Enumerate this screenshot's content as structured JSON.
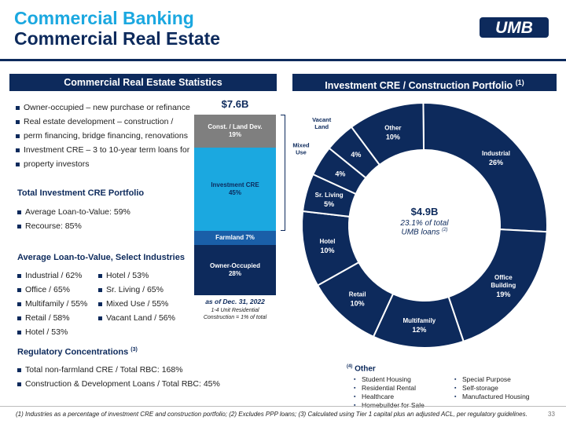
{
  "header": {
    "title_line1": "Commercial Banking",
    "title_line2": "Commercial Real Estate",
    "logo_text": "UMB"
  },
  "left": {
    "header": "Commercial Real Estate Statistics",
    "intro_bullets": [
      "Owner-occupied – new purchase or refinance",
      "Real estate development – construction /",
      "perm financing, bridge financing, renovations",
      "Investment CRE – 3 to 10-year term loans for",
      "property investors"
    ],
    "portfolio": {
      "heading": "Total Investment CRE Portfolio",
      "items": [
        "Average Loan-to-Value: 59%",
        "Recourse: 85%"
      ]
    },
    "ltv": {
      "heading": "Average Loan-to-Value, Select Industries",
      "col1": [
        "Industrial / 62%",
        "Office / 65%",
        "Multifamily / 55%",
        "Retail / 58%",
        "Hotel / 53%"
      ],
      "col2": [
        "Hotel / 53%",
        "Sr. Living / 65%",
        "Mixed Use / 55%",
        "Vacant Land / 56%"
      ]
    },
    "regulatory": {
      "heading": "Regulatory Concentrations",
      "footnote_ref": "(3)",
      "items": [
        "Total non-farmland CRE / Total RBC: 168%",
        "Construction & Development Loans / Total RBC: 45%"
      ]
    }
  },
  "stack": {
    "total": "$7.6B",
    "segments": [
      {
        "name": "Const. / Land Dev.",
        "pct": "19%",
        "value": 19,
        "color": "#7f7f7f"
      },
      {
        "name": "Investment CRE",
        "pct": "45%",
        "value": 45,
        "color": "#1ba8e0"
      },
      {
        "name": "Farmland",
        "pct": "7%",
        "value": 7,
        "color": "#1a5fa8"
      },
      {
        "name": "Owner-Occupied",
        "pct": "28%",
        "value": 28,
        "color": "#0d2a5c"
      }
    ],
    "farmland_label": "Farmland 7%",
    "date": "as of Dec. 31, 2022",
    "note_line1": "1-4 Unit Residential",
    "note_line2": "Construction = 1% of total"
  },
  "chart_data": {
    "type": "pie",
    "title": "Investment CRE / Construction Portfolio",
    "title_ref": "(1)",
    "center_value": "$4.9B",
    "center_line1": "23.1% of total",
    "center_line2": "UMB loans",
    "center_ref": "(2)",
    "categories": [
      "Industrial",
      "Office Building",
      "Multifamily",
      "Retail",
      "Hotel",
      "Sr. Living",
      "Mixed Use",
      "Vacant Land",
      "Other"
    ],
    "values": [
      26,
      19,
      12,
      10,
      10,
      5,
      4,
      4,
      10
    ],
    "value_labels": [
      "26%",
      "19%",
      "12%",
      "10%",
      "10%",
      "5%",
      "4%",
      "4%",
      "10%"
    ]
  },
  "other_box": {
    "heading": "Other",
    "ref": "(4)",
    "col1": [
      "Student Housing",
      "Residential Rental",
      "Healthcare",
      "Homebuilder for Sale"
    ],
    "col2": [
      "Special Purpose",
      "Self-storage",
      "Manufactured Housing"
    ]
  },
  "footer": {
    "footnote": "(1) Industries as a percentage of investment CRE and construction portfolio; (2) Excludes PPP loans; (3) Calculated using Tier 1 capital plus an adjusted ACL, per regulatory guidelines.",
    "page": "33"
  },
  "colors": {
    "navy": "#0d2a5c",
    "accent": "#1ba8e0",
    "gray": "#7f7f7f"
  }
}
